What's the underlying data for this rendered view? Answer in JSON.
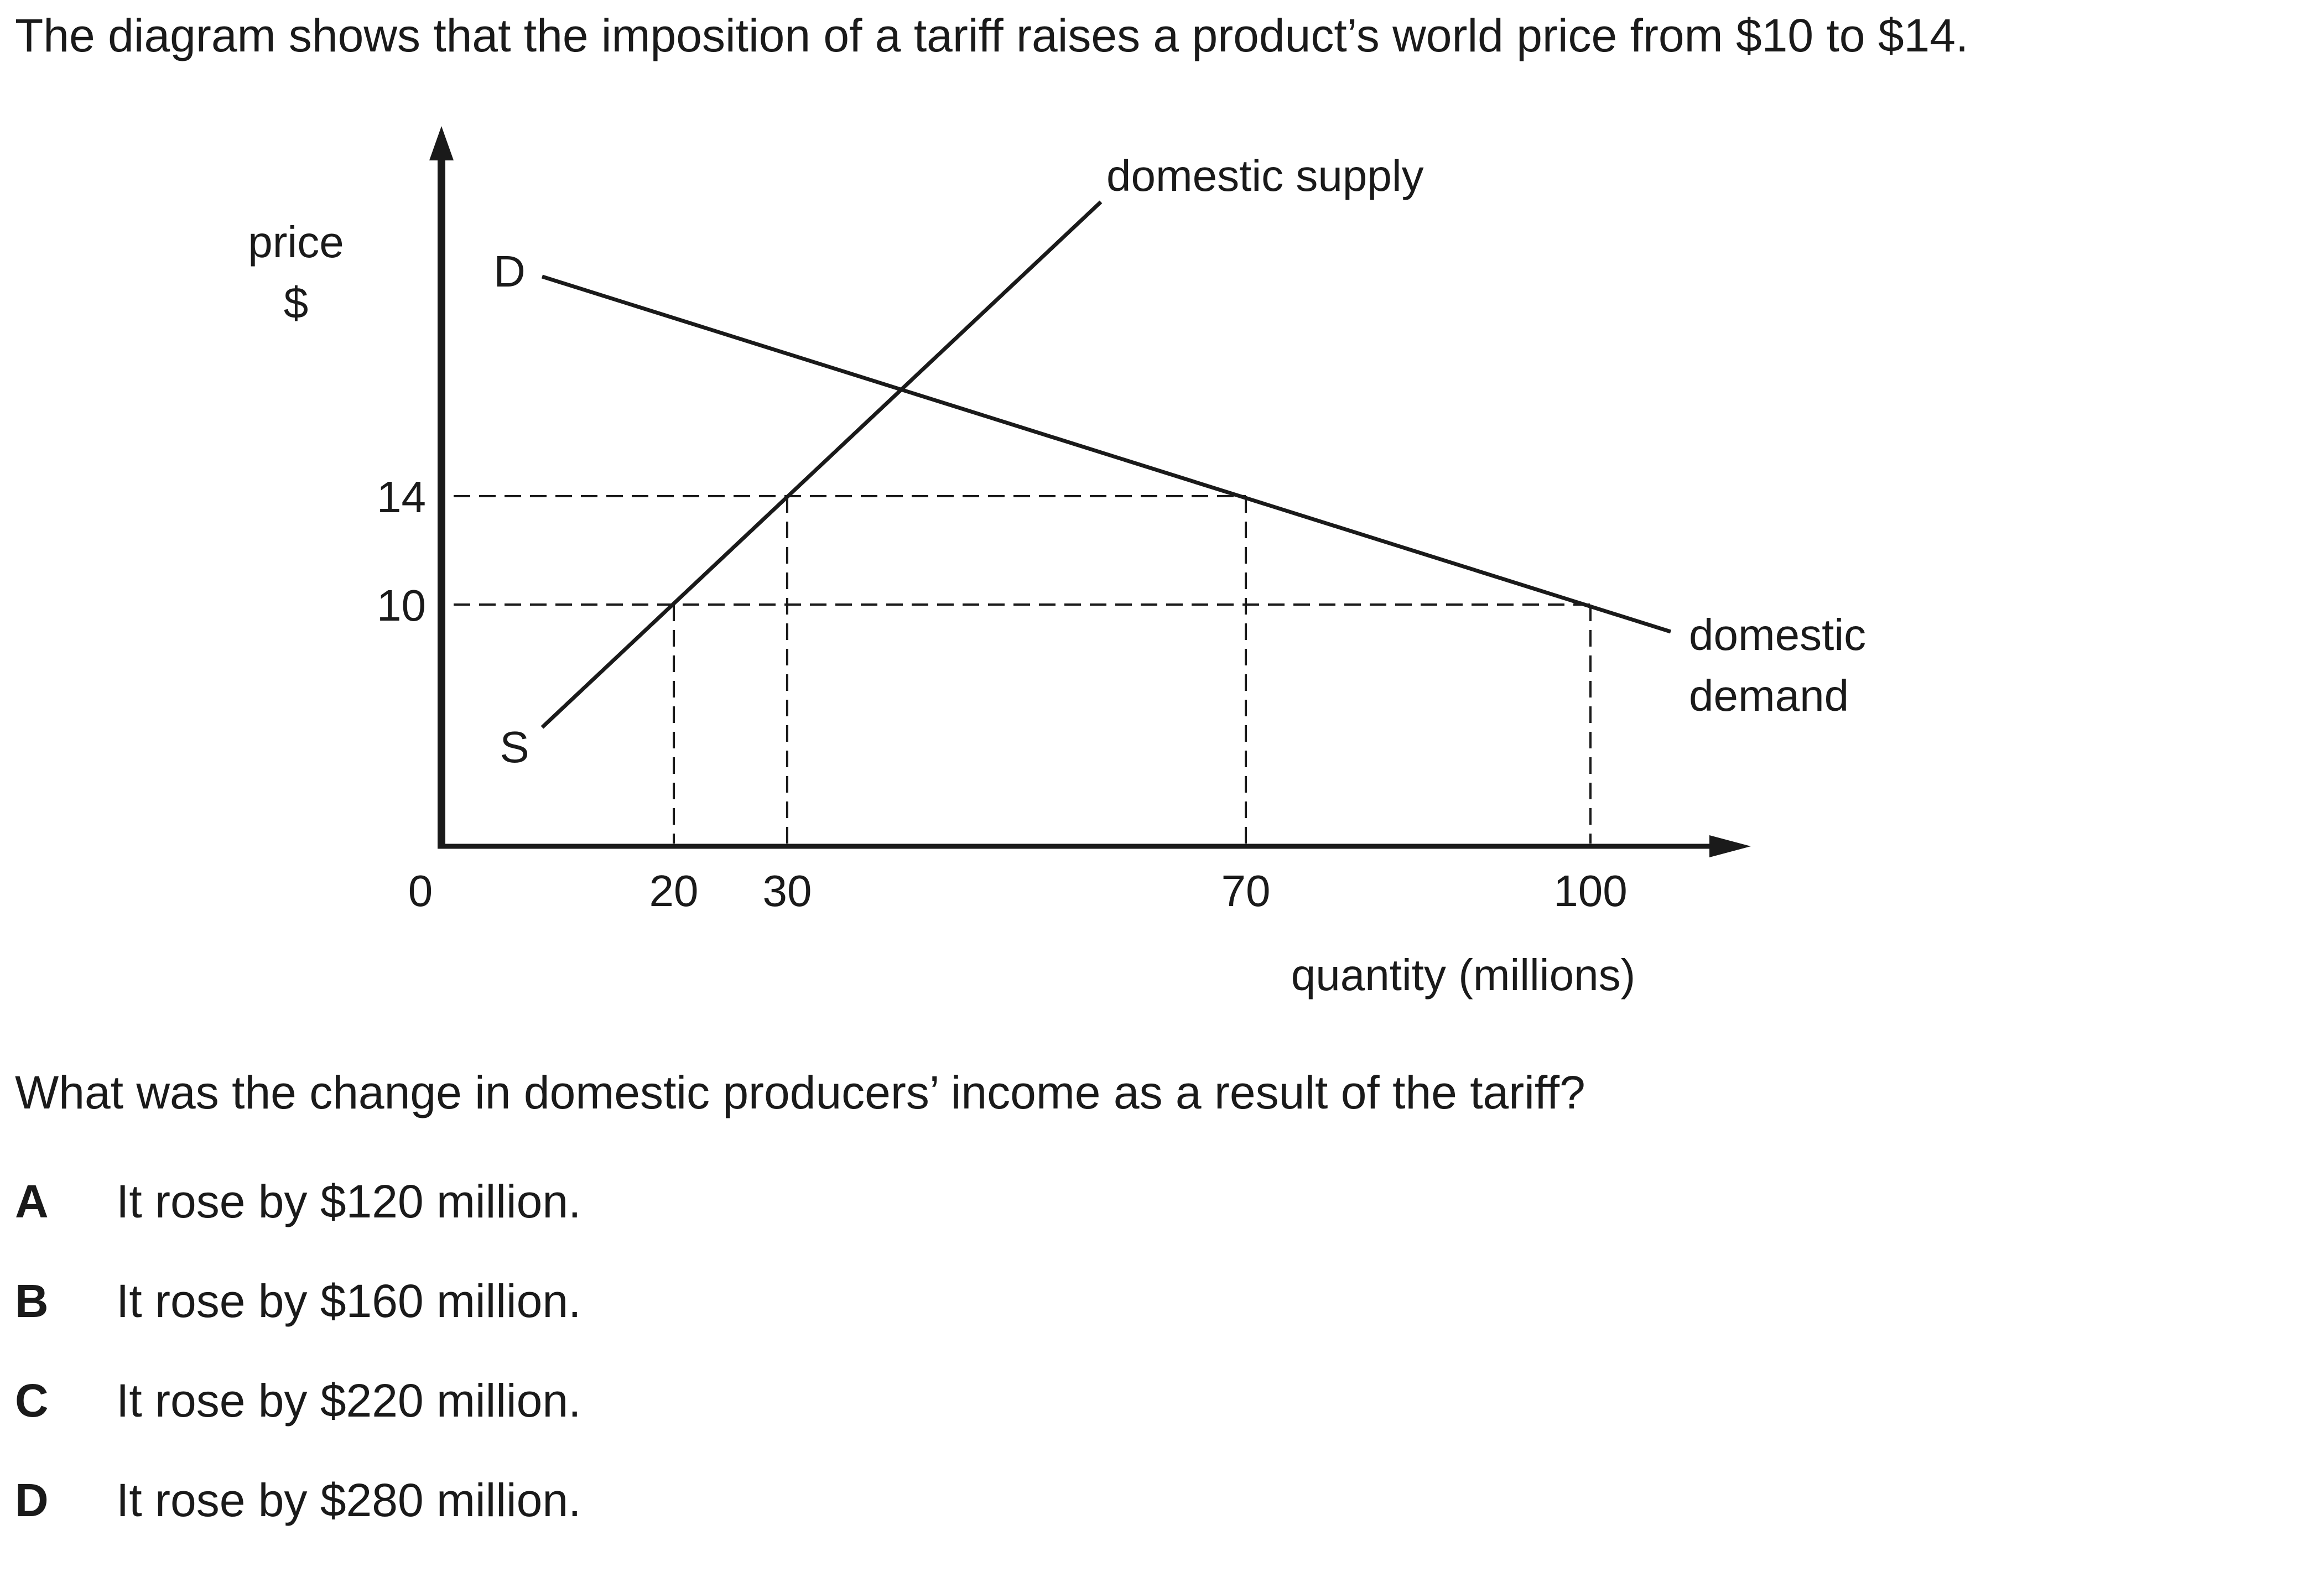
{
  "intro": "The diagram shows that the imposition of a tariff raises a product’s world price from $10 to $14.",
  "diagram": {
    "y_axis_label_line1": "price",
    "y_axis_label_line2": "$",
    "origin_label": "0",
    "x_axis_label": "quantity (millions)",
    "price_ticks": [
      "14",
      "10"
    ],
    "quantity_ticks": [
      "20",
      "30",
      "70",
      "100"
    ],
    "supply_curve_label": "domestic supply",
    "supply_curve_letter": "S",
    "demand_curve_label_line1": "domestic",
    "demand_curve_label_line2": "demand",
    "demand_curve_letter": "D"
  },
  "question": "What was the change in domestic producers’ income as a result of the tariff?",
  "options": [
    {
      "letter": "A",
      "text": "It rose by $120 million."
    },
    {
      "letter": "B",
      "text": "It rose by $160 million."
    },
    {
      "letter": "C",
      "text": "It rose by $220 million."
    },
    {
      "letter": "D",
      "text": "It rose by $280 million."
    }
  ]
}
